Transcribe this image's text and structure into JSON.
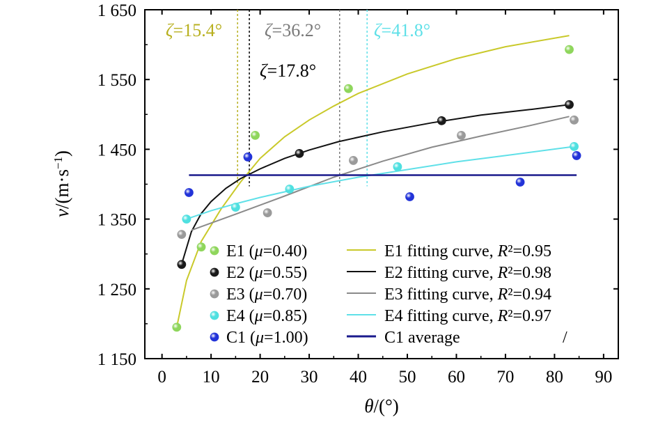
{
  "chart_data": {
    "type": "scatter",
    "xlabel_parts": [
      "θ",
      "/(°)"
    ],
    "ylabel_parts": [
      "v",
      "/(m·s",
      "−1",
      ")"
    ],
    "xlim": [
      -3.5,
      93
    ],
    "ylim": [
      1150,
      1650
    ],
    "xticks": [
      0,
      10,
      20,
      30,
      40,
      50,
      60,
      70,
      80,
      90
    ],
    "xtick_labels": [
      "0",
      "10",
      "20",
      "30",
      "40",
      "50",
      "60",
      "70",
      "80",
      "90"
    ],
    "yticks": [
      1150,
      1250,
      1350,
      1450,
      1550,
      1650
    ],
    "ytick_labels": [
      "1 150",
      "1 250",
      "1 350",
      "1 450",
      "1 550",
      "1 650"
    ],
    "grid": false,
    "series": [
      {
        "name": "E1",
        "mu_label": "E1 (μ=0.40)",
        "color": "#8fd65c",
        "fit_color": "#c9c92a",
        "fit_label": "E1 fitting curve, R²=0.95",
        "r2": 0.95,
        "points": [
          [
            3,
            1195
          ],
          [
            8,
            1310
          ],
          [
            19,
            1470
          ],
          [
            38,
            1537
          ],
          [
            83,
            1593
          ]
        ],
        "fit": [
          [
            3,
            1195
          ],
          [
            5,
            1262
          ],
          [
            8,
            1318
          ],
          [
            12,
            1364
          ],
          [
            16,
            1403
          ],
          [
            20,
            1437
          ],
          [
            25,
            1468
          ],
          [
            30,
            1492
          ],
          [
            35,
            1512
          ],
          [
            40,
            1530
          ],
          [
            50,
            1558
          ],
          [
            60,
            1580
          ],
          [
            70,
            1597
          ],
          [
            83,
            1613
          ]
        ]
      },
      {
        "name": "E2",
        "mu_label": "E2 (μ=0.55)",
        "color": "#1a1a1a",
        "fit_color": "#111111",
        "fit_label": "E2 fitting curve, R²=0.98",
        "r2": 0.98,
        "points": [
          [
            4,
            1285
          ],
          [
            28,
            1444
          ],
          [
            57,
            1491
          ],
          [
            83,
            1514
          ]
        ],
        "fit": [
          [
            4,
            1285
          ],
          [
            6,
            1332
          ],
          [
            8,
            1358
          ],
          [
            10,
            1375
          ],
          [
            13,
            1394
          ],
          [
            16,
            1408
          ],
          [
            20,
            1422
          ],
          [
            25,
            1437
          ],
          [
            30,
            1449
          ],
          [
            36,
            1461
          ],
          [
            45,
            1475
          ],
          [
            55,
            1488
          ],
          [
            65,
            1499
          ],
          [
            75,
            1507
          ],
          [
            83,
            1514
          ]
        ]
      },
      {
        "name": "E3",
        "mu_label": "E3 (μ=0.70)",
        "color": "#9a9a9a",
        "fit_color": "#8a8a8a",
        "fit_label": "E3 fitting curve, R²=0.94",
        "r2": 0.94,
        "points": [
          [
            4,
            1328
          ],
          [
            21.5,
            1359
          ],
          [
            39,
            1434
          ],
          [
            61,
            1470
          ],
          [
            84,
            1492
          ]
        ],
        "fit": [
          [
            6,
            1334
          ],
          [
            15,
            1357
          ],
          [
            25,
            1383
          ],
          [
            35,
            1410
          ],
          [
            45,
            1433
          ],
          [
            55,
            1453
          ],
          [
            65,
            1469
          ],
          [
            75,
            1484
          ],
          [
            83,
            1497
          ]
        ]
      },
      {
        "name": "E4",
        "mu_label": "E4 (μ=0.85)",
        "color": "#4fe0e0",
        "fit_color": "#5fe0e8",
        "fit_label": "E4 fitting curve, R²=0.97",
        "r2": 0.97,
        "points": [
          [
            5,
            1350
          ],
          [
            15,
            1367
          ],
          [
            26,
            1393
          ],
          [
            48,
            1425
          ],
          [
            84,
            1454
          ]
        ],
        "fit": [
          [
            5,
            1350
          ],
          [
            10,
            1362
          ],
          [
            15,
            1372
          ],
          [
            20,
            1381
          ],
          [
            30,
            1397
          ],
          [
            40,
            1410
          ],
          [
            50,
            1421
          ],
          [
            60,
            1432
          ],
          [
            70,
            1441
          ],
          [
            84,
            1454
          ]
        ]
      },
      {
        "name": "C1",
        "mu_label": "C1 (μ=1.00)",
        "color": "#2233d8",
        "fit_color": "#1a1a8c",
        "fit_label": "C1 average",
        "points": [
          [
            5.5,
            1388
          ],
          [
            17.5,
            1439
          ],
          [
            50.5,
            1382
          ],
          [
            73,
            1403
          ],
          [
            84.5,
            1441
          ]
        ],
        "average": 1413,
        "average_range": [
          5.5,
          84.5
        ]
      }
    ],
    "legend_position": "bottom-left",
    "legend_extra_mark": "/",
    "annotations": [
      {
        "prefix": "ζ",
        "value": "=15.4°",
        "x": 15.4,
        "color": "#b8b020"
      },
      {
        "prefix": "ζ",
        "value": "=17.8°",
        "x": 17.8,
        "color": "#000000"
      },
      {
        "prefix": "ζ",
        "value": "=36.2°",
        "x": 36.2,
        "color": "#7a7a7a"
      },
      {
        "prefix": "ζ",
        "value": "=41.8°",
        "x": 41.8,
        "color": "#5fe0e8"
      }
    ]
  }
}
